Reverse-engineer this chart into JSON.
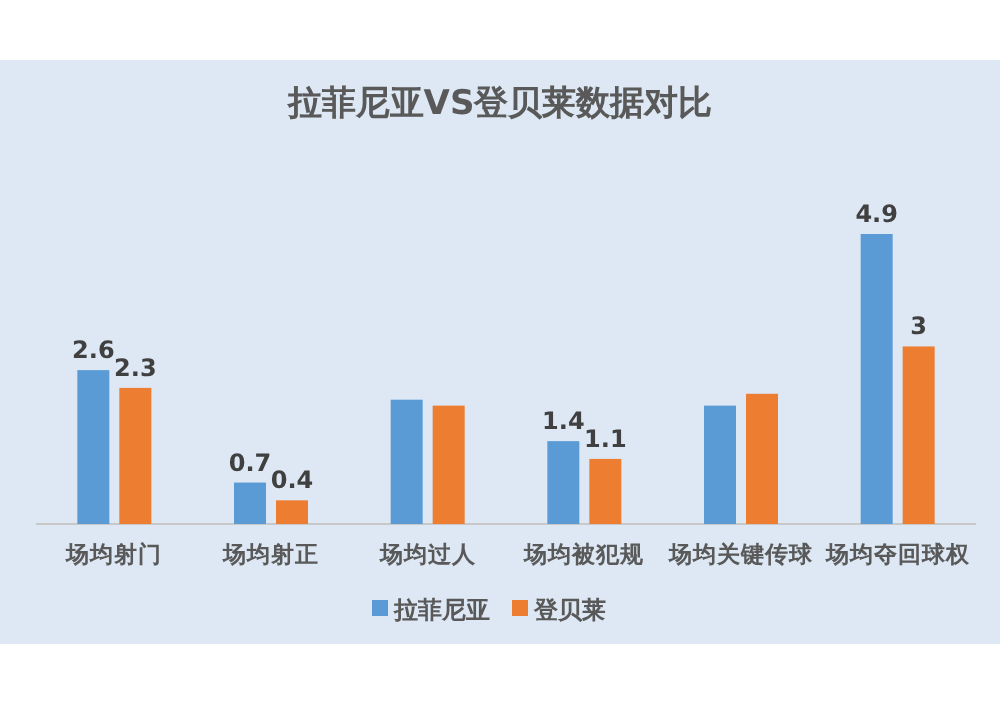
{
  "chart_data": {
    "type": "bar",
    "title": "拉菲尼亚VS登贝莱数据对比",
    "categories": [
      "场均射门",
      "场均射正",
      "场均过人",
      "场均被犯规",
      "场均关键传球",
      "场均夺回球权"
    ],
    "series": [
      {
        "name": "拉菲尼亚",
        "color": "#5b9bd5",
        "values": [
          2.6,
          0.7,
          2.1,
          1.4,
          2.0,
          4.9
        ],
        "value_labels": [
          "2.6",
          "0.7",
          null,
          "1.4",
          null,
          "4.9"
        ]
      },
      {
        "name": "登贝莱",
        "color": "#ed7d31",
        "values": [
          2.3,
          0.4,
          2.0,
          1.1,
          2.2,
          3
        ],
        "value_labels": [
          "2.3",
          "0.4",
          null,
          "1.1",
          null,
          "3"
        ]
      }
    ],
    "legend": "bottom"
  }
}
